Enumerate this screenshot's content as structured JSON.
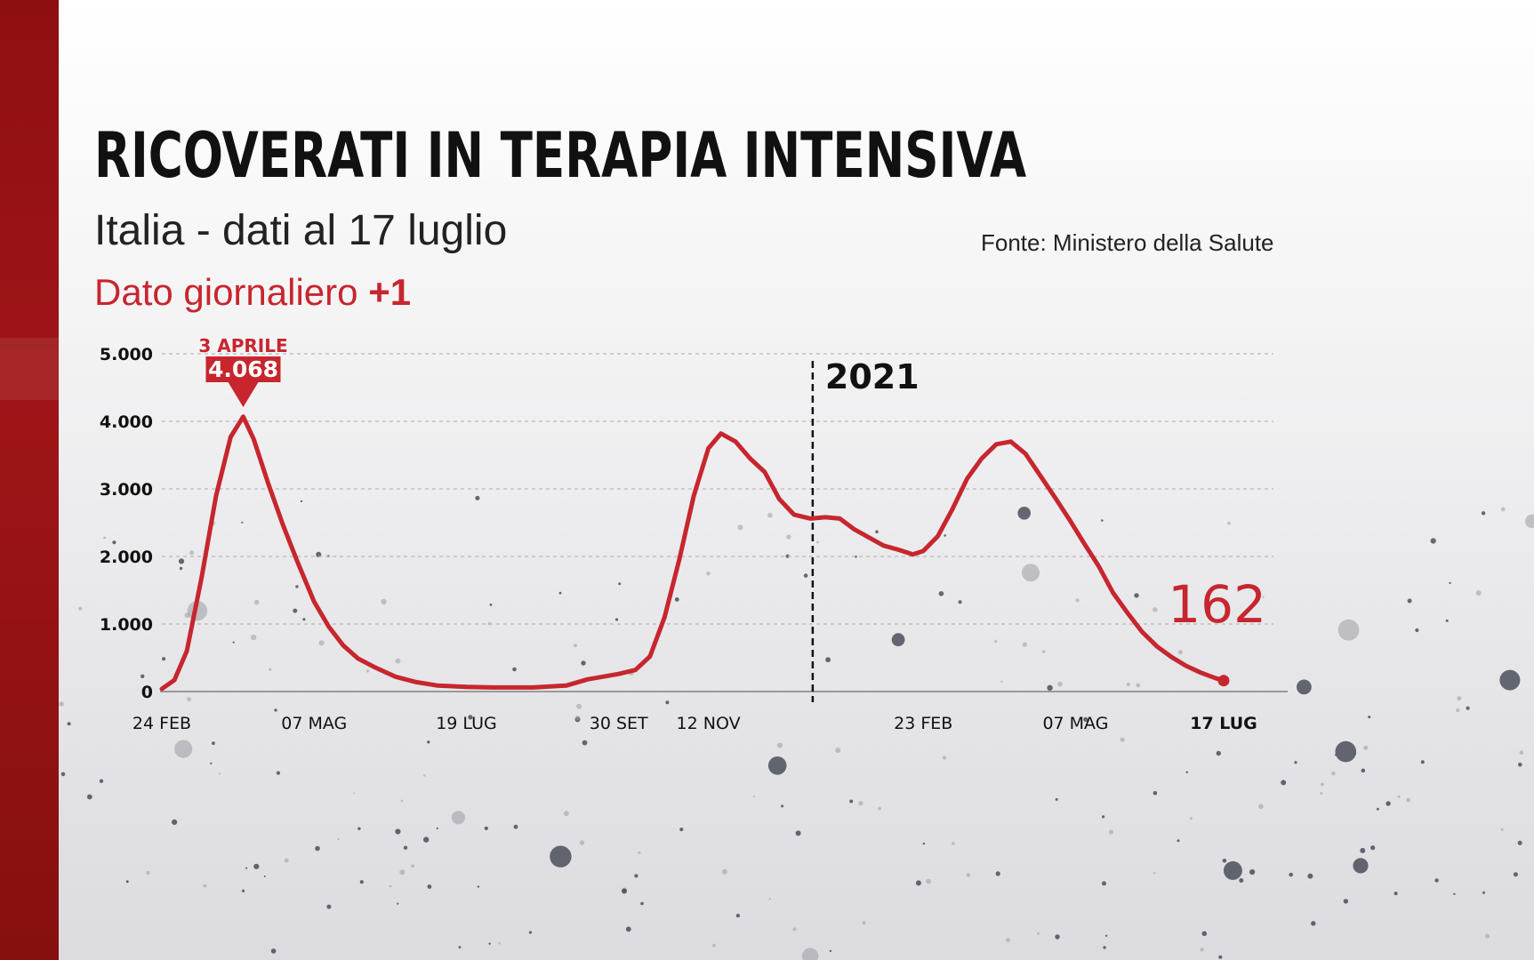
{
  "header": {
    "title": "RICOVERATI IN TERAPIA INTENSIVA",
    "subtitle": "Italia - dati al 17 luglio",
    "source": "Fonte: Ministero della Salute",
    "daily_label": "Dato giornaliero",
    "daily_value": "+1"
  },
  "colors": {
    "accent": "#c7262e",
    "side_bar": "#9e1418",
    "text": "#111111"
  },
  "chart_data": {
    "type": "line",
    "title": "RICOVERATI IN TERAPIA INTENSIVA",
    "subtitle": "Italia - dati al 17 luglio",
    "xlabel": "",
    "ylabel": "",
    "ylim": [
      0,
      5000
    ],
    "yticks": [
      0,
      1000,
      2000,
      3000,
      4000,
      5000
    ],
    "ytick_labels": [
      "0",
      "1.000",
      "2.000",
      "3.000",
      "4.000",
      "5.000"
    ],
    "xlim": [
      "2020-02-24",
      "2021-07-17"
    ],
    "xticks": [
      {
        "date": "2020-02-24",
        "label": "24 FEB"
      },
      {
        "date": "2020-05-07",
        "label": "07 MAG"
      },
      {
        "date": "2020-07-19",
        "label": "19 LUG"
      },
      {
        "date": "2020-09-30",
        "label": "30 SET"
      },
      {
        "date": "2020-11-12",
        "label": "12 NOV"
      },
      {
        "date": "2021-02-23",
        "label": "23 FEB"
      },
      {
        "date": "2021-05-07",
        "label": "07 MAG"
      },
      {
        "date": "2021-07-17",
        "label": "17 LUG",
        "bold": true
      }
    ],
    "grid": true,
    "legend": "none",
    "series": [
      {
        "color": "#c7262e",
        "points": [
          [
            "2020-02-24",
            40
          ],
          [
            "2020-03-01",
            170
          ],
          [
            "2020-03-07",
            600
          ],
          [
            "2020-03-14",
            1680
          ],
          [
            "2020-03-21",
            2900
          ],
          [
            "2020-03-28",
            3770
          ],
          [
            "2020-04-03",
            4068
          ],
          [
            "2020-04-08",
            3740
          ],
          [
            "2020-04-15",
            3080
          ],
          [
            "2020-04-22",
            2470
          ],
          [
            "2020-04-29",
            1920
          ],
          [
            "2020-05-07",
            1330
          ],
          [
            "2020-05-14",
            960
          ],
          [
            "2020-05-21",
            680
          ],
          [
            "2020-05-28",
            490
          ],
          [
            "2020-06-05",
            360
          ],
          [
            "2020-06-15",
            220
          ],
          [
            "2020-06-25",
            140
          ],
          [
            "2020-07-05",
            90
          ],
          [
            "2020-07-19",
            70
          ],
          [
            "2020-08-01",
            60
          ],
          [
            "2020-08-20",
            60
          ],
          [
            "2020-09-05",
            90
          ],
          [
            "2020-09-15",
            180
          ],
          [
            "2020-09-30",
            260
          ],
          [
            "2020-10-08",
            320
          ],
          [
            "2020-10-15",
            520
          ],
          [
            "2020-10-22",
            1100
          ],
          [
            "2020-10-29",
            1950
          ],
          [
            "2020-11-05",
            2900
          ],
          [
            "2020-11-12",
            3600
          ],
          [
            "2020-11-18",
            3820
          ],
          [
            "2020-11-25",
            3700
          ],
          [
            "2020-12-02",
            3450
          ],
          [
            "2020-12-09",
            3250
          ],
          [
            "2020-12-16",
            2850
          ],
          [
            "2020-12-23",
            2620
          ],
          [
            "2020-12-31",
            2560
          ],
          [
            "2021-01-07",
            2580
          ],
          [
            "2021-01-14",
            2560
          ],
          [
            "2021-01-21",
            2400
          ],
          [
            "2021-01-28",
            2280
          ],
          [
            "2021-02-04",
            2160
          ],
          [
            "2021-02-11",
            2100
          ],
          [
            "2021-02-18",
            2030
          ],
          [
            "2021-02-23",
            2080
          ],
          [
            "2021-03-02",
            2300
          ],
          [
            "2021-03-09",
            2700
          ],
          [
            "2021-03-16",
            3150
          ],
          [
            "2021-03-23",
            3450
          ],
          [
            "2021-03-30",
            3660
          ],
          [
            "2021-04-06",
            3700
          ],
          [
            "2021-04-13",
            3520
          ],
          [
            "2021-04-20",
            3200
          ],
          [
            "2021-04-27",
            2880
          ],
          [
            "2021-05-04",
            2550
          ],
          [
            "2021-05-11",
            2200
          ],
          [
            "2021-05-18",
            1860
          ],
          [
            "2021-05-25",
            1460
          ],
          [
            "2021-06-01",
            1160
          ],
          [
            "2021-06-08",
            880
          ],
          [
            "2021-06-15",
            670
          ],
          [
            "2021-06-22",
            510
          ],
          [
            "2021-06-29",
            380
          ],
          [
            "2021-07-06",
            280
          ],
          [
            "2021-07-13",
            200
          ],
          [
            "2021-07-17",
            162
          ]
        ]
      }
    ],
    "annotations": {
      "peak": {
        "date": "2020-04-03",
        "value": 4068,
        "date_label": "3 APRILE",
        "value_label": "4.068"
      },
      "year_marker": {
        "date": "2021-01-01",
        "label": "2021"
      },
      "last_value": {
        "date": "2021-07-17",
        "value": 162,
        "label": "162"
      }
    }
  }
}
